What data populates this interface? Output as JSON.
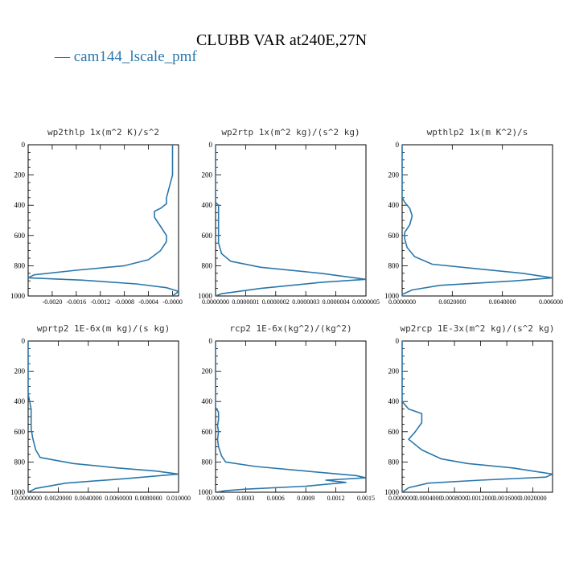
{
  "figure": {
    "title": "CLUBB VAR at240E,27N",
    "legend_label": "— cam144_lscale_pmf",
    "series_color": "#2a77ab"
  },
  "chart_data": [
    {
      "type": "line",
      "title": "wp2thlp   1x(m^2 K)/s^2",
      "series_name": "cam144_lscale_pmf",
      "xlim": [
        -0.0024,
        0.0001
      ],
      "ylim": [
        1000,
        0
      ],
      "yticks": [
        0,
        200,
        400,
        600,
        800,
        1000
      ],
      "xtick_values": [
        -0.002,
        -0.0016,
        -0.0012,
        -0.0008,
        -0.0004,
        0.0
      ],
      "xtick_labels": [
        "-0.0020",
        "-0.0016",
        "-0.0012",
        "-0.0008",
        "-0.0004",
        "-0.0000"
      ],
      "points": [
        [
          -0.0,
          0
        ],
        [
          -0.0,
          200
        ],
        [
          -0.0001,
          350
        ],
        [
          -0.0001,
          390
        ],
        [
          -0.0002,
          420
        ],
        [
          -0.0003,
          440
        ],
        [
          -0.0003,
          480
        ],
        [
          -0.0002,
          540
        ],
        [
          -0.0001,
          600
        ],
        [
          -0.0001,
          640
        ],
        [
          -0.0002,
          700
        ],
        [
          -0.0004,
          760
        ],
        [
          -0.0008,
          800
        ],
        [
          -0.0016,
          830
        ],
        [
          -0.0023,
          860
        ],
        [
          -0.0024,
          880
        ],
        [
          -0.0015,
          895
        ],
        [
          -0.0006,
          920
        ],
        [
          -0.0001,
          945
        ],
        [
          0.0001,
          970
        ],
        [
          -0.0,
          1000
        ]
      ]
    },
    {
      "type": "line",
      "title": "wp2rtp   1x(m^2 kg)/(s^2 kg)",
      "series_name": "cam144_lscale_pmf",
      "xlim": [
        0.0,
        5e-07
      ],
      "ylim": [
        1000,
        0
      ],
      "yticks": [
        0,
        200,
        400,
        600,
        800,
        1000
      ],
      "xtick_values": [
        0.0,
        1e-07,
        2e-07,
        3e-07,
        4e-07,
        5e-07
      ],
      "xtick_labels": [
        "0.0000000",
        "0.0000001",
        "0.0000002",
        "0.0000003",
        "0.0000004",
        "0.0000005"
      ],
      "points": [
        [
          0.0,
          0
        ],
        [
          0.0,
          380
        ],
        [
          1e-08,
          400
        ],
        [
          1e-08,
          500
        ],
        [
          1e-08,
          560
        ],
        [
          1e-08,
          600
        ],
        [
          1e-08,
          650
        ],
        [
          2e-08,
          720
        ],
        [
          5e-08,
          770
        ],
        [
          1.5e-07,
          810
        ],
        [
          3.5e-07,
          850
        ],
        [
          5e-07,
          890
        ],
        [
          3.5e-07,
          910
        ],
        [
          1.5e-07,
          950
        ],
        [
          2e-08,
          985
        ],
        [
          0.0,
          1000
        ]
      ]
    },
    {
      "type": "line",
      "title": "wpthlp2   1x(m K^2)/s",
      "series_name": "cam144_lscale_pmf",
      "xlim": [
        0.0,
        0.006
      ],
      "ylim": [
        1000,
        0
      ],
      "yticks": [
        0,
        200,
        400,
        600,
        800,
        1000
      ],
      "xtick_values": [
        0.0,
        0.002,
        0.004,
        0.006
      ],
      "xtick_labels": [
        "0.0000000",
        "0.0020000",
        "0.0040000",
        "0.0060000"
      ],
      "points": [
        [
          0.0,
          0
        ],
        [
          0.0,
          350
        ],
        [
          0.0001,
          380
        ],
        [
          0.0003,
          420
        ],
        [
          0.0004,
          470
        ],
        [
          0.0003,
          530
        ],
        [
          0.0001,
          580
        ],
        [
          0.0001,
          620
        ],
        [
          0.0002,
          680
        ],
        [
          0.0005,
          740
        ],
        [
          0.0012,
          790
        ],
        [
          0.003,
          820
        ],
        [
          0.0048,
          850
        ],
        [
          0.006,
          880
        ],
        [
          0.0045,
          900
        ],
        [
          0.0015,
          930
        ],
        [
          0.0004,
          960
        ],
        [
          0.0,
          990
        ],
        [
          0.0,
          1000
        ]
      ]
    },
    {
      "type": "line",
      "title": "wprtp2   1E-6x(m kg)/(s kg)",
      "series_name": "cam144_lscale_pmf",
      "xlim": [
        0.0,
        0.01
      ],
      "ylim": [
        1000,
        0
      ],
      "yticks": [
        0,
        200,
        400,
        600,
        800,
        1000
      ],
      "xtick_values": [
        0.0,
        0.002,
        0.004,
        0.006,
        0.008,
        0.01
      ],
      "xtick_labels": [
        "0.0000000",
        "0.0020000",
        "0.0040000",
        "0.0060000",
        "0.0080000",
        "0.010000"
      ],
      "points": [
        [
          0.0,
          0
        ],
        [
          0.0,
          350
        ],
        [
          0.0001,
          400
        ],
        [
          0.0002,
          450
        ],
        [
          0.0002,
          520
        ],
        [
          0.0002,
          580
        ],
        [
          0.0003,
          640
        ],
        [
          0.0005,
          720
        ],
        [
          0.0008,
          770
        ],
        [
          0.003,
          810
        ],
        [
          0.006,
          840
        ],
        [
          0.0085,
          860
        ],
        [
          0.01,
          880
        ],
        [
          0.0065,
          910
        ],
        [
          0.0025,
          940
        ],
        [
          0.0005,
          975
        ],
        [
          0.0,
          1000
        ]
      ]
    },
    {
      "type": "line",
      "title": "rcp2   1E-6x(kg^2)/(kg^2)",
      "series_name": "cam144_lscale_pmf",
      "xlim": [
        0.0,
        0.0015
      ],
      "ylim": [
        1000,
        0
      ],
      "yticks": [
        0,
        200,
        400,
        600,
        800,
        1000
      ],
      "xtick_values": [
        0.0,
        0.0003,
        0.0006,
        0.0009,
        0.0012,
        0.0015
      ],
      "xtick_labels": [
        "0.0000",
        "0.0003",
        "0.0006",
        "0.0009",
        "0.0012",
        "0.0015"
      ],
      "points": [
        [
          0.0,
          0
        ],
        [
          0.0,
          440
        ],
        [
          3e-05,
          470
        ],
        [
          3e-05,
          520
        ],
        [
          2e-05,
          560
        ],
        [
          3e-05,
          600
        ],
        [
          2e-05,
          650
        ],
        [
          3e-05,
          700
        ],
        [
          6e-05,
          760
        ],
        [
          0.0001,
          800
        ],
        [
          0.0004,
          830
        ],
        [
          0.0009,
          860
        ],
        [
          0.0014,
          890
        ],
        [
          0.0015,
          905
        ],
        [
          0.0011,
          920
        ],
        [
          0.0013,
          935
        ],
        [
          0.0009,
          960
        ],
        [
          0.0003,
          980
        ],
        [
          0.0001,
          990
        ],
        [
          0.0,
          1000
        ]
      ]
    },
    {
      "type": "line",
      "title": "wp2rcp   1E-3x(m^2 kg)/(s^2 kg)",
      "series_name": "cam144_lscale_pmf",
      "xlim": [
        0.0,
        0.0023
      ],
      "ylim": [
        1000,
        0
      ],
      "yticks": [
        0,
        200,
        400,
        600,
        800,
        1000
      ],
      "xtick_values": [
        0.0,
        0.0004,
        0.0008,
        0.0012,
        0.0016,
        0.002
      ],
      "xtick_labels": [
        "0.0000000",
        "0.0004000",
        "0.0008000",
        "0.0012000",
        "0.0016000",
        "0.0020000"
      ],
      "points": [
        [
          0.0,
          0
        ],
        [
          0.0,
          400
        ],
        [
          0.0001,
          450
        ],
        [
          0.0003,
          480
        ],
        [
          0.0003,
          540
        ],
        [
          0.0002,
          600
        ],
        [
          0.0001,
          650
        ],
        [
          0.0003,
          720
        ],
        [
          0.0006,
          780
        ],
        [
          0.001,
          810
        ],
        [
          0.0017,
          840
        ],
        [
          0.0023,
          880
        ],
        [
          0.0022,
          900
        ],
        [
          0.0012,
          920
        ],
        [
          0.0004,
          940
        ],
        [
          0.0001,
          970
        ],
        [
          0.0,
          1000
        ]
      ]
    }
  ]
}
